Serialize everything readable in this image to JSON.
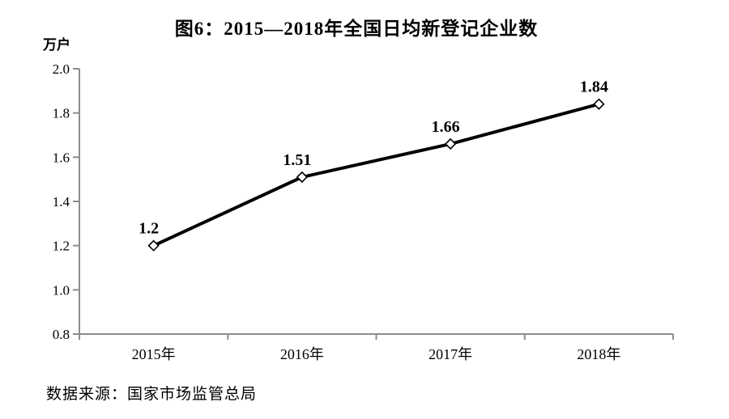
{
  "title": "图6：2015—2018年全国日均新登记企业数",
  "source_note": "数据来源：国家市场监管总局",
  "chart_data": {
    "type": "line",
    "title": "图6：2015—2018年全国日均新登记企业数",
    "unit_label": "万户",
    "xlabel": "",
    "ylabel": "万户",
    "categories": [
      "2015年",
      "2016年",
      "2017年",
      "2018年"
    ],
    "values": [
      1.2,
      1.51,
      1.66,
      1.84
    ],
    "point_labels": [
      "1.2",
      "1.51",
      "1.66",
      "1.84"
    ],
    "ylim": [
      0.8,
      2.0
    ],
    "y_tick_values": [
      0.8,
      1.0,
      1.2,
      1.4,
      1.6,
      1.8,
      2.0
    ],
    "y_tick_labels": [
      "0.8",
      "1.0",
      "1.2",
      "1.4",
      "1.6",
      "1.8",
      "2.0"
    ],
    "grid": false,
    "legend": "none",
    "marker": "open-diamond",
    "line_color": "#000000",
    "marker_fill": "#ffffff",
    "axis_color": "#8c8c8c",
    "label_color": "#000000"
  }
}
